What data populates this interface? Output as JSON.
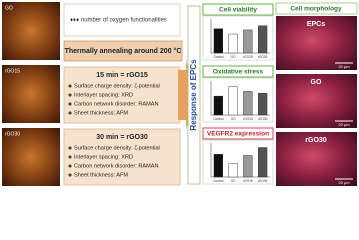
{
  "afm": [
    {
      "label": "GO"
    },
    {
      "label": "rGO15"
    },
    {
      "label": "rGO30"
    }
  ],
  "oxygen_note": "♦♦♦ number of oxygen functionalities",
  "process": "Thermally annealing around 200 °C",
  "treatments": [
    {
      "title": "15 min = rGO15",
      "items": [
        "Surface charge density: ζ-potential",
        "Interlayer spacing: XRD",
        "Carbon network disorder: RAMAN",
        "Sheet thickness: AFM"
      ]
    },
    {
      "title": "30 min = rGO30",
      "items": [
        "Surface charge density: ζ-potential",
        "Interlayer spacing: XRD",
        "Carbon network disorder: RAMAN",
        "Sheet thickness: AFM"
      ]
    }
  ],
  "response": "Response of EPCs",
  "panels": [
    {
      "title": "Cell viability",
      "chart_data": {
        "type": "bar",
        "categories": [
          "Control",
          "GO",
          "rGO15",
          "rGO30"
        ],
        "values": [
          100,
          78,
          95,
          112
        ],
        "ylim": [
          0,
          140
        ]
      }
    },
    {
      "title": "Oxidative stress",
      "chart_data": {
        "type": "bar",
        "categories": [
          "Control",
          "GO",
          "rGO15",
          "rGO30"
        ],
        "values": [
          100,
          150,
          125,
          115
        ],
        "ylim": [
          0,
          180
        ]
      }
    },
    {
      "title": "VEGFR2 expression",
      "chart_data": {
        "type": "bar",
        "categories": [
          "Control",
          "GO",
          "rGO15",
          "rGO30"
        ],
        "values": [
          100,
          60,
          95,
          130
        ],
        "ylim": [
          0,
          150
        ]
      }
    }
  ],
  "morphology": {
    "title": "Cell morphology",
    "images": [
      {
        "label": "EPCs",
        "scale": "20 µm"
      },
      {
        "label": "GO",
        "scale": "20 µm"
      },
      {
        "label": "rGO30",
        "scale": "20 µm"
      }
    ]
  }
}
